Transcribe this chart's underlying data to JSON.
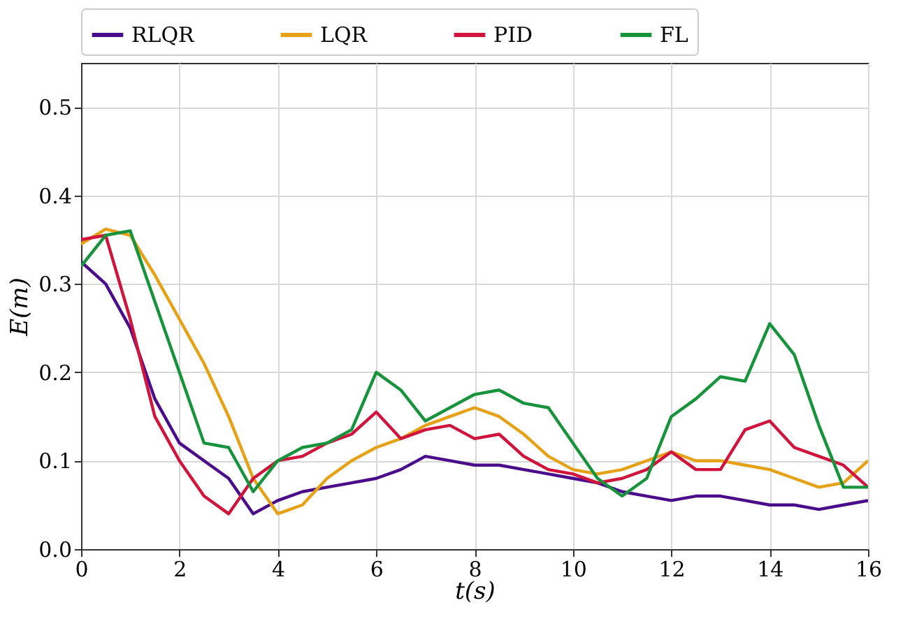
{
  "chart_data": {
    "type": "line",
    "xlabel": "t(s)",
    "ylabel": "E(m)",
    "x": [
      0,
      0.5,
      1,
      1.5,
      2,
      2.5,
      3,
      3.5,
      4,
      4.5,
      5,
      5.5,
      6,
      6.5,
      7,
      7.5,
      8,
      8.5,
      9,
      9.5,
      10,
      10.5,
      11,
      11.5,
      12,
      12.5,
      13,
      13.5,
      14,
      14.5,
      15,
      15.5,
      16
    ],
    "series": [
      {
        "name": "RLQR",
        "color": "#4b0c8c",
        "values": [
          0.325,
          0.3,
          0.25,
          0.17,
          0.12,
          0.1,
          0.08,
          0.04,
          0.055,
          0.065,
          0.07,
          0.075,
          0.08,
          0.09,
          0.105,
          0.1,
          0.095,
          0.095,
          0.09,
          0.085,
          0.08,
          0.075,
          0.065,
          0.06,
          0.055,
          0.06,
          0.06,
          0.055,
          0.05,
          0.05,
          0.045,
          0.05,
          0.055
        ]
      },
      {
        "name": "LQR",
        "color": "#e6a117",
        "values": [
          0.345,
          0.362,
          0.355,
          0.31,
          0.26,
          0.21,
          0.15,
          0.08,
          0.04,
          0.05,
          0.08,
          0.1,
          0.115,
          0.125,
          0.14,
          0.15,
          0.16,
          0.15,
          0.13,
          0.105,
          0.09,
          0.085,
          0.09,
          0.1,
          0.11,
          0.1,
          0.1,
          0.095,
          0.09,
          0.08,
          0.07,
          0.075,
          0.1
        ]
      },
      {
        "name": "PID",
        "color": "#d0143c",
        "values": [
          0.35,
          0.355,
          0.26,
          0.15,
          0.1,
          0.06,
          0.04,
          0.08,
          0.1,
          0.105,
          0.12,
          0.13,
          0.155,
          0.125,
          0.135,
          0.14,
          0.125,
          0.13,
          0.105,
          0.09,
          0.085,
          0.075,
          0.08,
          0.09,
          0.11,
          0.09,
          0.09,
          0.135,
          0.145,
          0.115,
          0.105,
          0.095,
          0.07
        ]
      },
      {
        "name": "FL",
        "color": "#17933c",
        "values": [
          0.32,
          0.355,
          0.36,
          0.28,
          0.2,
          0.12,
          0.115,
          0.065,
          0.1,
          0.115,
          0.12,
          0.135,
          0.2,
          0.18,
          0.145,
          0.16,
          0.175,
          0.18,
          0.165,
          0.16,
          0.12,
          0.08,
          0.06,
          0.08,
          0.15,
          0.17,
          0.195,
          0.19,
          0.255,
          0.22,
          0.14,
          0.07,
          0.07
        ]
      }
    ],
    "xlim": [
      0,
      16
    ],
    "xticks": [
      0,
      2,
      4,
      6,
      8,
      10,
      12,
      14,
      16
    ],
    "ylim": [
      0,
      0.55
    ],
    "yticks": [
      {
        "value": 0,
        "label": "0.0"
      },
      0.1,
      0.2,
      0.3,
      0.4,
      0.5
    ],
    "grid": true,
    "legend": "top"
  }
}
